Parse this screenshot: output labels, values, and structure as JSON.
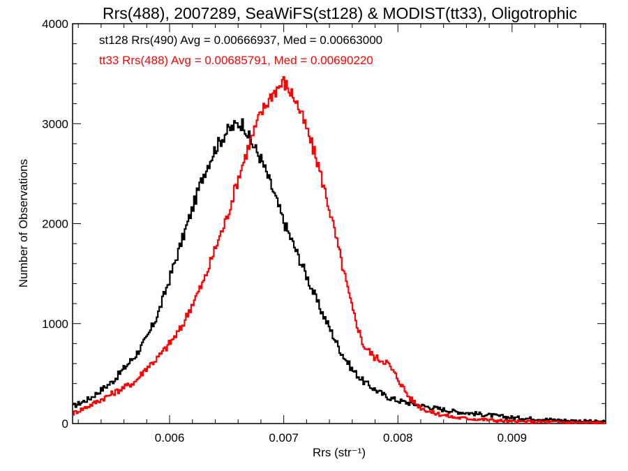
{
  "chart_data": {
    "type": "line",
    "title": "Rrs(488), 2007289, SeaWiFS(st128) & MODIST(tt33), Oligotrophic",
    "xlabel": "Rrs (str⁻¹)",
    "ylabel": "Number of Observations",
    "xlim": [
      0.00515,
      0.00982
    ],
    "ylim": [
      0,
      4000
    ],
    "xticks": [
      0.006,
      0.007,
      0.008,
      0.009
    ],
    "xtick_labels": [
      "0.006",
      "0.007",
      "0.008",
      "0.009"
    ],
    "yticks": [
      0,
      1000,
      2000,
      3000,
      4000
    ],
    "ytick_labels": [
      "0",
      "1000",
      "2000",
      "3000",
      "4000"
    ],
    "grid": false,
    "legend_position": "top-left",
    "series": [
      {
        "name": "st128 Rrs(490) Avg = 0.00666937, Med = 0.00663000",
        "color": "#000000",
        "points": [
          [
            0.00515,
            170
          ],
          [
            0.0053,
            250
          ],
          [
            0.0055,
            420
          ],
          [
            0.0057,
            680
          ],
          [
            0.0058,
            850
          ],
          [
            0.0059,
            1100
          ],
          [
            0.006,
            1450
          ],
          [
            0.0061,
            1800
          ],
          [
            0.0062,
            2150
          ],
          [
            0.0063,
            2500
          ],
          [
            0.0064,
            2750
          ],
          [
            0.0065,
            2920
          ],
          [
            0.0066,
            3000
          ],
          [
            0.00665,
            3000
          ],
          [
            0.0067,
            2850
          ],
          [
            0.0068,
            2650
          ],
          [
            0.0069,
            2350
          ],
          [
            0.007,
            2020
          ],
          [
            0.0071,
            1750
          ],
          [
            0.0072,
            1480
          ],
          [
            0.0073,
            1200
          ],
          [
            0.0074,
            960
          ],
          [
            0.0075,
            720
          ],
          [
            0.0076,
            540
          ],
          [
            0.0077,
            420
          ],
          [
            0.0078,
            340
          ],
          [
            0.0079,
            270
          ],
          [
            0.008,
            230
          ],
          [
            0.0082,
            180
          ],
          [
            0.0085,
            120
          ],
          [
            0.009,
            60
          ],
          [
            0.0095,
            30
          ],
          [
            0.00982,
            15
          ]
        ]
      },
      {
        "name": "tt33 Rrs(488) Avg = 0.00685791, Med = 0.00690220",
        "color": "#ff0000",
        "points": [
          [
            0.00515,
            100
          ],
          [
            0.0053,
            180
          ],
          [
            0.0055,
            300
          ],
          [
            0.0057,
            420
          ],
          [
            0.0058,
            560
          ],
          [
            0.0059,
            660
          ],
          [
            0.006,
            800
          ],
          [
            0.0061,
            950
          ],
          [
            0.0062,
            1200
          ],
          [
            0.0063,
            1420
          ],
          [
            0.0064,
            1750
          ],
          [
            0.0065,
            2050
          ],
          [
            0.0066,
            2450
          ],
          [
            0.0067,
            2800
          ],
          [
            0.0068,
            3100
          ],
          [
            0.0069,
            3300
          ],
          [
            0.007,
            3420
          ],
          [
            0.0071,
            3250
          ],
          [
            0.0072,
            2950
          ],
          [
            0.0073,
            2600
          ],
          [
            0.0074,
            2150
          ],
          [
            0.0075,
            1650
          ],
          [
            0.0076,
            1150
          ],
          [
            0.0077,
            780
          ],
          [
            0.0078,
            660
          ],
          [
            0.0079,
            620
          ],
          [
            0.008,
            450
          ],
          [
            0.0081,
            260
          ],
          [
            0.0082,
            160
          ],
          [
            0.0083,
            110
          ],
          [
            0.0085,
            60
          ],
          [
            0.009,
            20
          ],
          [
            0.00982,
            8
          ]
        ]
      }
    ]
  }
}
